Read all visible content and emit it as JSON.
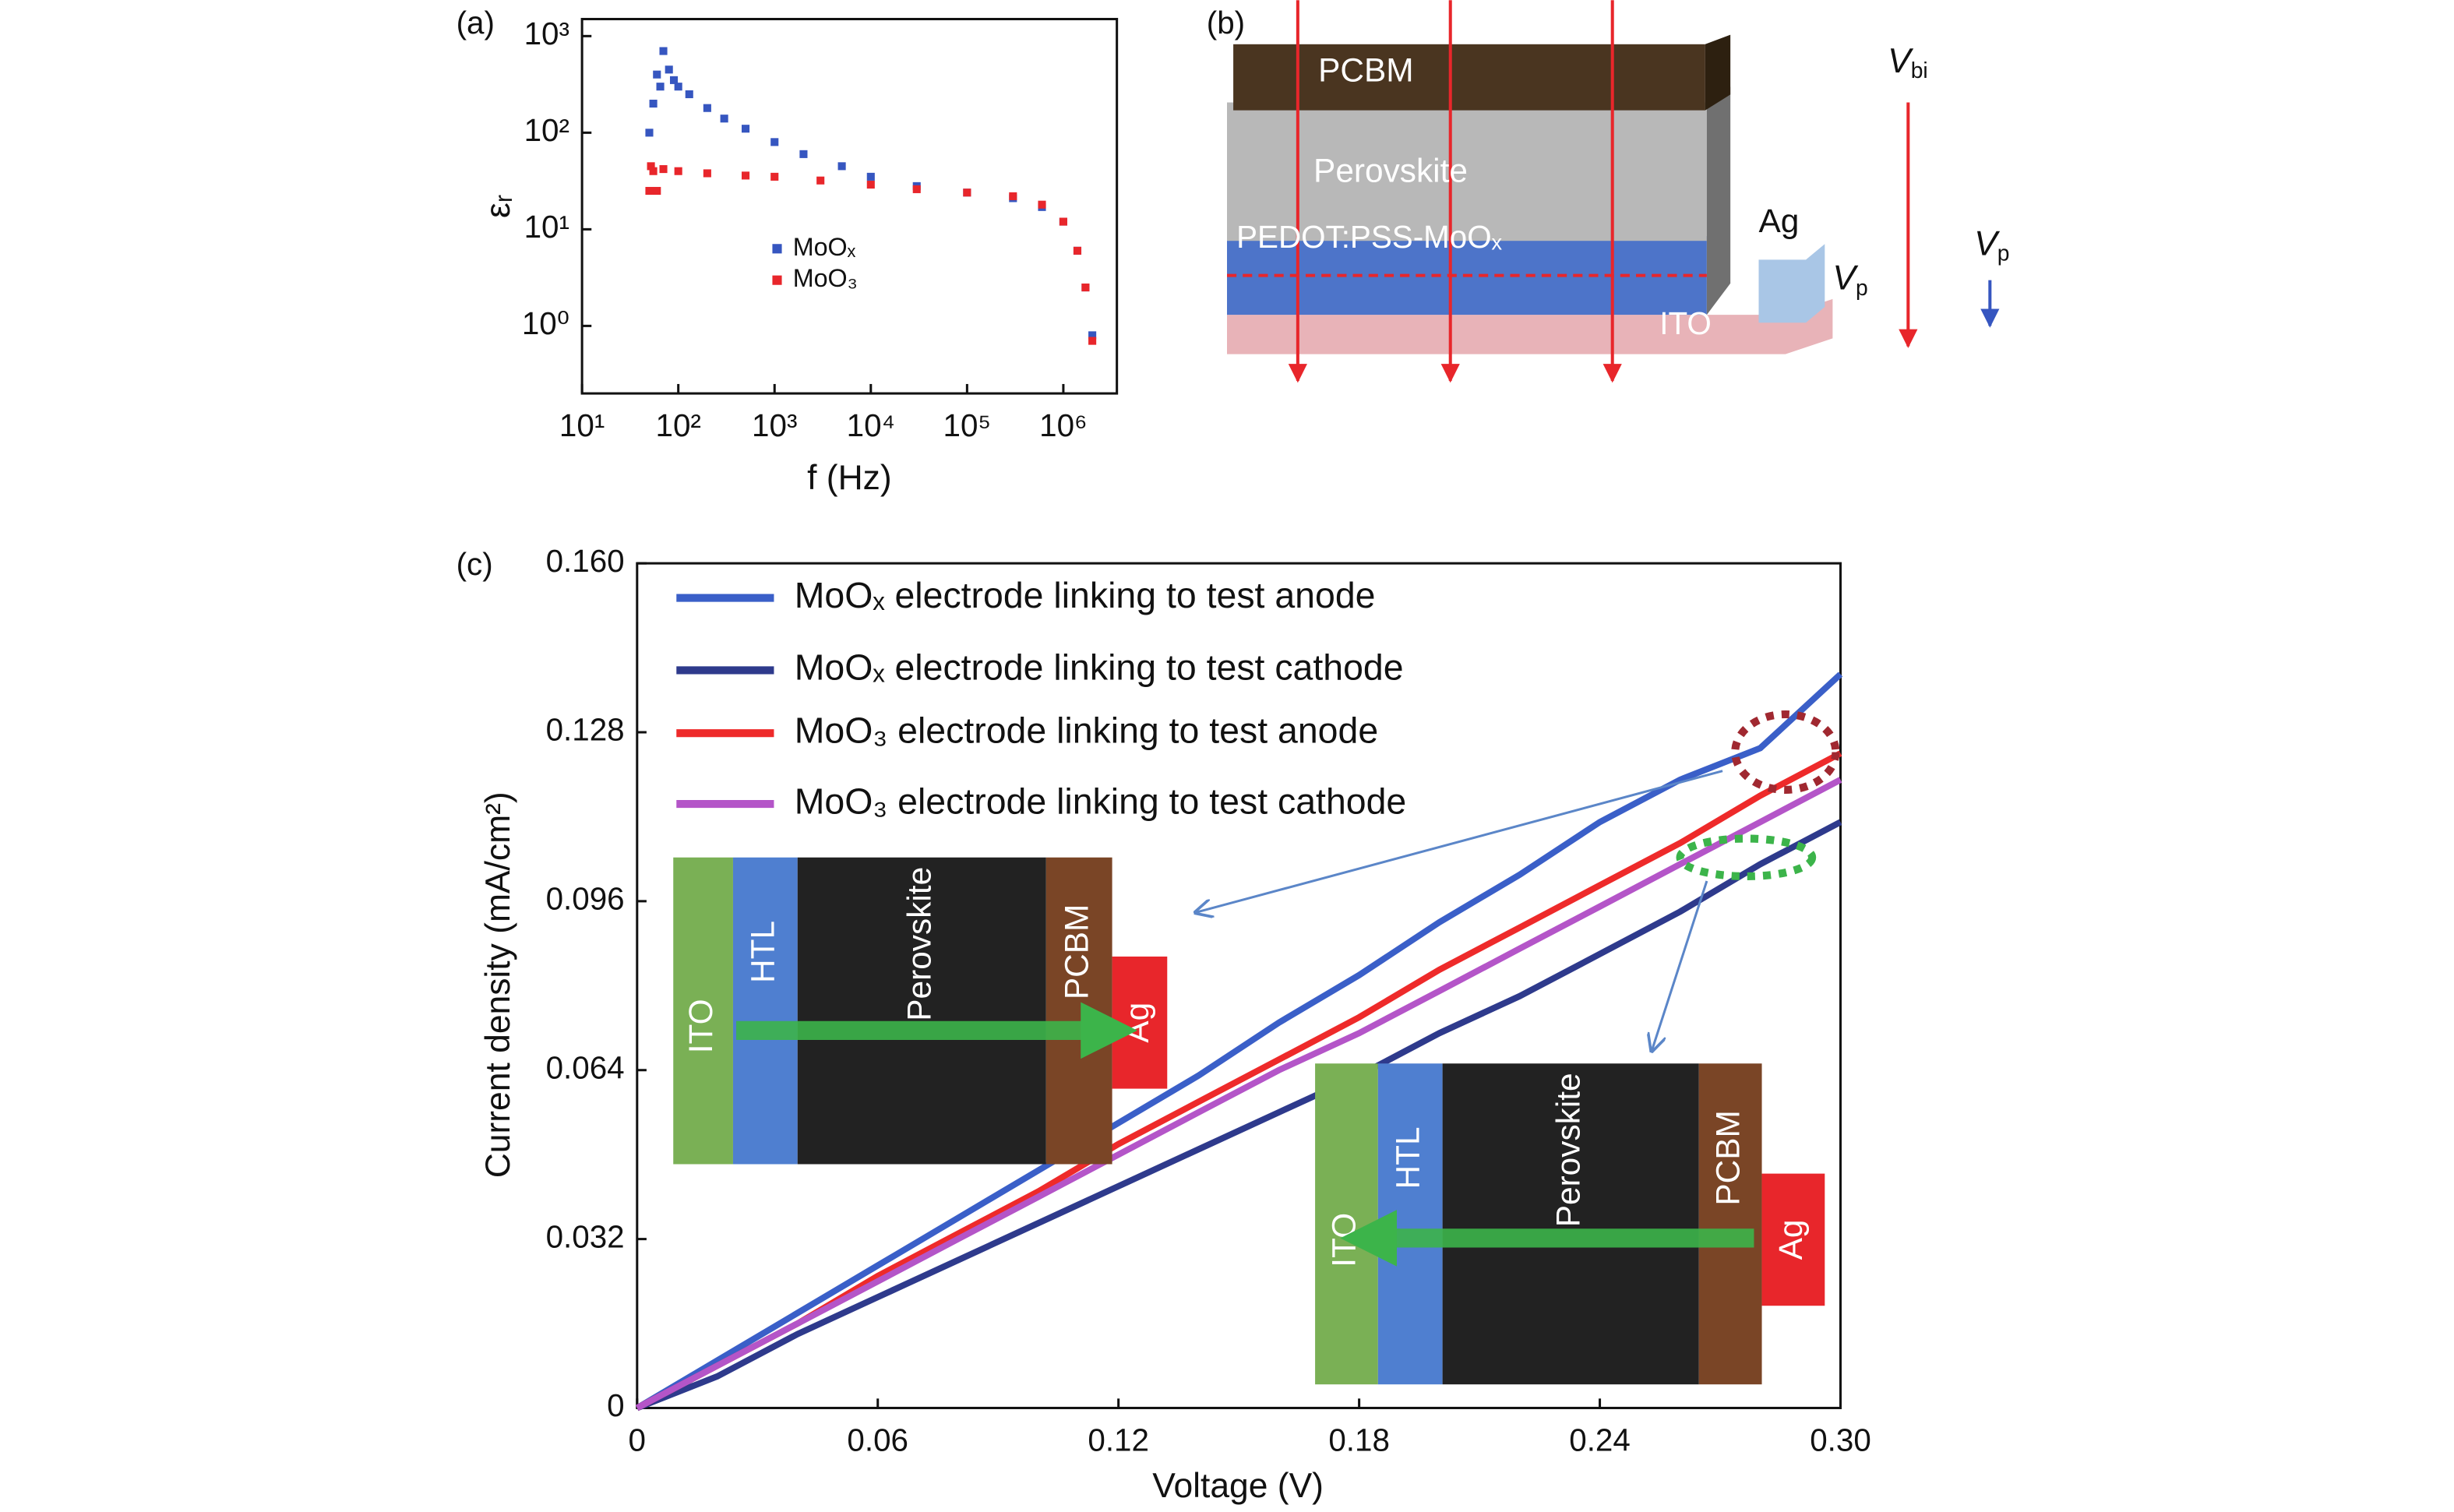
{
  "chart_data": [
    {
      "type": "scatter",
      "panel": "(a)",
      "xlabel": "f (Hz)",
      "ylabel": "εᵣ",
      "xscale": "log",
      "yscale": "log",
      "xlim": [
        10,
        3600000
      ],
      "ylim": [
        0.2,
        1500
      ],
      "xticks": [
        {
          "value": 10,
          "label": "10¹"
        },
        {
          "value": 100,
          "label": "10²"
        },
        {
          "value": 1000,
          "label": "10³"
        },
        {
          "value": 10000,
          "label": "10⁴"
        },
        {
          "value": 100000,
          "label": "10⁵"
        },
        {
          "value": 1000000,
          "label": "10⁶"
        }
      ],
      "yticks": [
        {
          "value": 1,
          "label": "10⁰"
        },
        {
          "value": 10,
          "label": "10¹"
        },
        {
          "value": 100,
          "label": "10²"
        },
        {
          "value": 1000,
          "label": "10³"
        }
      ],
      "series": [
        {
          "name": "MoOₓ",
          "color": "#3656c0",
          "x": [
            50,
            55,
            60,
            65,
            70,
            80,
            90,
            100,
            130,
            200,
            300,
            500,
            1000,
            2000,
            5000,
            10000,
            30000,
            100000,
            300000,
            600000,
            1000000,
            1400000,
            1700000,
            2000000
          ],
          "values": [
            100,
            200,
            400,
            300,
            700,
            450,
            350,
            300,
            250,
            180,
            140,
            110,
            80,
            60,
            45,
            35,
            28,
            24,
            21,
            17,
            12,
            6,
            2.5,
            0.8
          ]
        },
        {
          "name": "MoO₃",
          "color": "#e8262b",
          "x": [
            50,
            52,
            55,
            60,
            70,
            100,
            200,
            500,
            1000,
            3000,
            10000,
            30000,
            100000,
            300000,
            600000,
            1000000,
            1400000,
            1700000,
            2000000
          ],
          "values": [
            25,
            45,
            40,
            25,
            42,
            40,
            38,
            36,
            35,
            32,
            29,
            26,
            24,
            22,
            18,
            12,
            6,
            2.5,
            0.7
          ]
        }
      ]
    },
    {
      "type": "line",
      "panel": "(c)",
      "xlabel": "Voltage (V)",
      "ylabel": "Current density (mA/cm²)",
      "xlim": [
        0,
        0.3
      ],
      "ylim": [
        0,
        0.16
      ],
      "xticks": [
        0,
        0.06,
        0.12,
        0.18,
        0.24,
        {
          "value": 0.3,
          "label": "0.30"
        }
      ],
      "yticks": [
        0,
        0.032,
        0.064,
        0.096,
        0.128,
        {
          "value": 0.16,
          "label": "0.160"
        }
      ],
      "x": [
        0,
        0.02,
        0.04,
        0.06,
        0.08,
        0.1,
        0.12,
        0.14,
        0.16,
        0.18,
        0.2,
        0.22,
        0.24,
        0.26,
        0.28,
        0.3
      ],
      "series": [
        {
          "name": "MoOₓ electrode linking to test anode",
          "color": "#3a5fc8",
          "values": [
            0,
            0.009,
            0.018,
            0.027,
            0.036,
            0.045,
            0.054,
            0.063,
            0.073,
            0.082,
            0.092,
            0.101,
            0.111,
            0.119,
            0.125,
            0.139
          ]
        },
        {
          "name": "MoOₓ electrode linking to test cathode",
          "color": "#2e3a8c",
          "values": [
            0,
            0.006,
            0.014,
            0.021,
            0.028,
            0.035,
            0.042,
            0.049,
            0.056,
            0.063,
            0.071,
            0.078,
            0.086,
            0.094,
            0.103,
            0.111
          ]
        },
        {
          "name": "MoO₃ electrode linking to test anode",
          "color": "#ee2a2a",
          "values": [
            0,
            0.008,
            0.016,
            0.025,
            0.033,
            0.041,
            0.05,
            0.058,
            0.066,
            0.074,
            0.083,
            0.091,
            0.099,
            0.107,
            0.116,
            0.124
          ]
        },
        {
          "name": "MoO₃ electrode linking to test cathode",
          "color": "#b455c8",
          "values": [
            0,
            0.008,
            0.016,
            0.024,
            0.032,
            0.04,
            0.048,
            0.056,
            0.064,
            0.071,
            0.079,
            0.087,
            0.095,
            0.103,
            0.111,
            0.119
          ]
        }
      ]
    }
  ],
  "diagram": {
    "panel": "(b)",
    "layers": [
      "PCBM",
      "Perovskite",
      "PEDOT:PSS-MoOₓ",
      "ITO",
      "Ag"
    ],
    "vbi": {
      "main": "V",
      "sub": "bi"
    },
    "vp1": {
      "main": "V",
      "sub": "p"
    },
    "vp2": {
      "main": "V",
      "sub": "p"
    }
  },
  "insets": [
    {
      "layers": [
        "ITO",
        "HTL",
        "Perovskite",
        "PCBM",
        "Ag"
      ]
    },
    {
      "layers": [
        "ITO",
        "HTL",
        "Perovskite",
        "PCBM",
        "Ag"
      ]
    }
  ]
}
